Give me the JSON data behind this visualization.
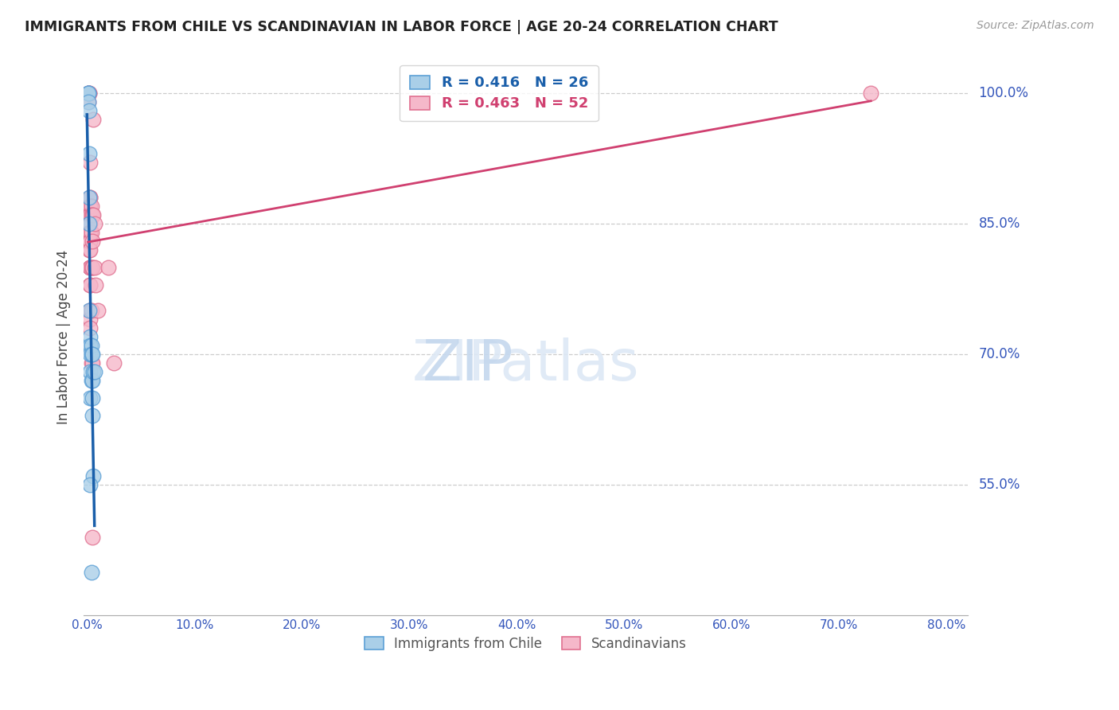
{
  "title": "IMMIGRANTS FROM CHILE VS SCANDINAVIAN IN LABOR FORCE | AGE 20-24 CORRELATION CHART",
  "source": "Source: ZipAtlas.com",
  "ylabel": "In Labor Force | Age 20-24",
  "xlabel_ticks": [
    "0.0%",
    "10.0%",
    "20.0%",
    "30.0%",
    "40.0%",
    "50.0%",
    "60.0%",
    "70.0%",
    "80.0%"
  ],
  "xlabel_vals": [
    0.0,
    0.1,
    0.2,
    0.3,
    0.4,
    0.5,
    0.6,
    0.7,
    0.8
  ],
  "ytick_vals": [
    0.55,
    0.7,
    0.85,
    1.0
  ],
  "ytick_labels": [
    "55.0%",
    "70.0%",
    "85.0%",
    "100.0%"
  ],
  "xlim": [
    -0.003,
    0.82
  ],
  "ylim": [
    0.4,
    1.04
  ],
  "chile_R": 0.416,
  "chile_N": 26,
  "scand_R": 0.463,
  "scand_N": 52,
  "chile_color": "#aacfe8",
  "scand_color": "#f5b8ca",
  "chile_edge_color": "#5b9fd5",
  "scand_edge_color": "#e07090",
  "chile_line_color": "#1a5faa",
  "scand_line_color": "#d04070",
  "legend_label_chile": "Immigrants from Chile",
  "legend_label_scand": "Scandinavians",
  "chile_x": [
    0.001,
    0.001,
    0.001,
    0.001,
    0.002,
    0.002,
    0.002,
    0.002,
    0.002,
    0.003,
    0.003,
    0.003,
    0.003,
    0.003,
    0.004,
    0.004,
    0.004,
    0.005,
    0.005,
    0.005,
    0.005,
    0.006,
    0.006,
    0.007,
    0.003,
    0.004
  ],
  "chile_y": [
    1.0,
    1.0,
    1.0,
    0.99,
    0.98,
    0.93,
    0.88,
    0.85,
    0.75,
    0.72,
    0.71,
    0.7,
    0.68,
    0.65,
    0.71,
    0.7,
    0.67,
    0.7,
    0.67,
    0.65,
    0.63,
    0.68,
    0.56,
    0.68,
    0.55,
    0.45
  ],
  "scand_x": [
    0.001,
    0.001,
    0.001,
    0.002,
    0.002,
    0.002,
    0.002,
    0.002,
    0.002,
    0.002,
    0.002,
    0.003,
    0.003,
    0.003,
    0.003,
    0.003,
    0.003,
    0.003,
    0.003,
    0.003,
    0.003,
    0.003,
    0.003,
    0.003,
    0.003,
    0.003,
    0.003,
    0.003,
    0.003,
    0.003,
    0.003,
    0.003,
    0.004,
    0.004,
    0.004,
    0.004,
    0.004,
    0.004,
    0.005,
    0.005,
    0.005,
    0.005,
    0.006,
    0.006,
    0.007,
    0.007,
    0.008,
    0.01,
    0.02,
    0.025,
    0.73,
    0.005
  ],
  "scand_y": [
    1.0,
    1.0,
    0.99,
    1.0,
    1.0,
    0.87,
    0.86,
    0.86,
    0.86,
    0.85,
    0.82,
    0.92,
    0.88,
    0.88,
    0.87,
    0.86,
    0.86,
    0.85,
    0.84,
    0.84,
    0.83,
    0.83,
    0.82,
    0.8,
    0.8,
    0.8,
    0.78,
    0.78,
    0.75,
    0.75,
    0.74,
    0.73,
    0.87,
    0.86,
    0.84,
    0.8,
    0.75,
    0.69,
    0.86,
    0.83,
    0.8,
    0.69,
    0.97,
    0.86,
    0.85,
    0.8,
    0.78,
    0.75,
    0.8,
    0.69,
    1.0,
    0.49
  ]
}
